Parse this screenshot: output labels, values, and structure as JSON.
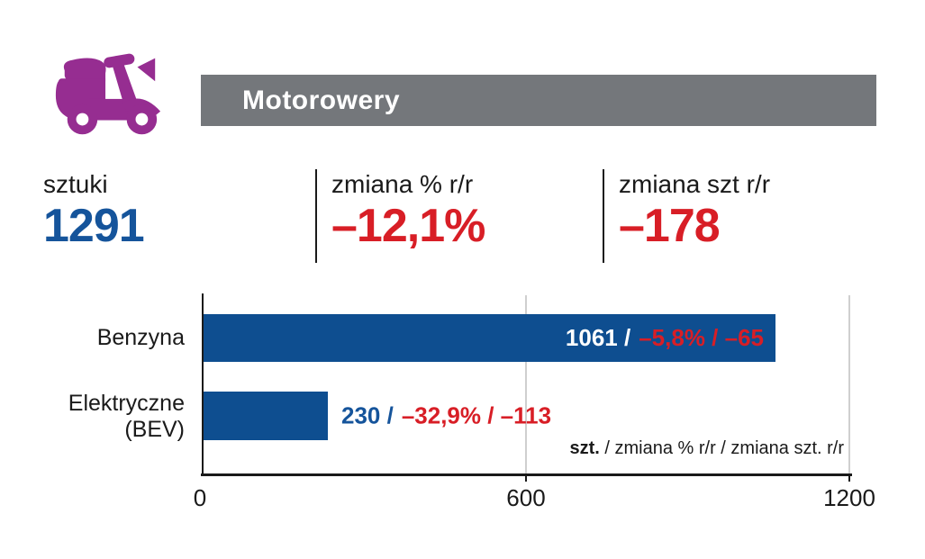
{
  "colors": {
    "bar_blue": "#0e4e90",
    "value_blue": "#15549b",
    "negative_red": "#d81e26",
    "icon_purple": "#962d91",
    "header_gray": "#74777b",
    "grid_gray": "#cfcfcf",
    "axis_black": "#1a1a1a"
  },
  "icon": {
    "name": "scooter-icon"
  },
  "header": {
    "title": "Motorowery"
  },
  "summary": {
    "units": {
      "label": "sztuki",
      "value": "1291"
    },
    "change_pct": {
      "label": "zmiana % r/r",
      "value": "–12,1%"
    },
    "change_abs": {
      "label": "zmiana szt r/r",
      "value": "–178"
    }
  },
  "chart_data": {
    "type": "bar",
    "orientation": "horizontal",
    "categories": [
      "Benzyna",
      "Elektryczne (BEV)"
    ],
    "values": [
      1061,
      230
    ],
    "series": [
      {
        "name": "szt.",
        "values": [
          1061,
          230
        ]
      },
      {
        "name": "zmiana % r/r",
        "values": [
          -5.8,
          -32.9
        ]
      },
      {
        "name": "zmiana szt. r/r",
        "values": [
          -65,
          -113
        ]
      }
    ],
    "xlim": [
      0,
      1200
    ],
    "xticks": [
      0,
      600,
      1200
    ],
    "grid": true,
    "legend_note_bold": "szt.",
    "legend_note_rest": " / zmiana % r/r / zmiana szt. r/r",
    "bar_labels": [
      {
        "lead": "1061 /",
        "tail": "–5,8% / –65",
        "placement": "inside"
      },
      {
        "lead": "230 /",
        "tail": "–32,9% / –113",
        "placement": "outside"
      }
    ],
    "category_display": [
      {
        "line1": "Benzyna",
        "line2": ""
      },
      {
        "line1": "Elektryczne",
        "line2": "(BEV)"
      }
    ]
  }
}
